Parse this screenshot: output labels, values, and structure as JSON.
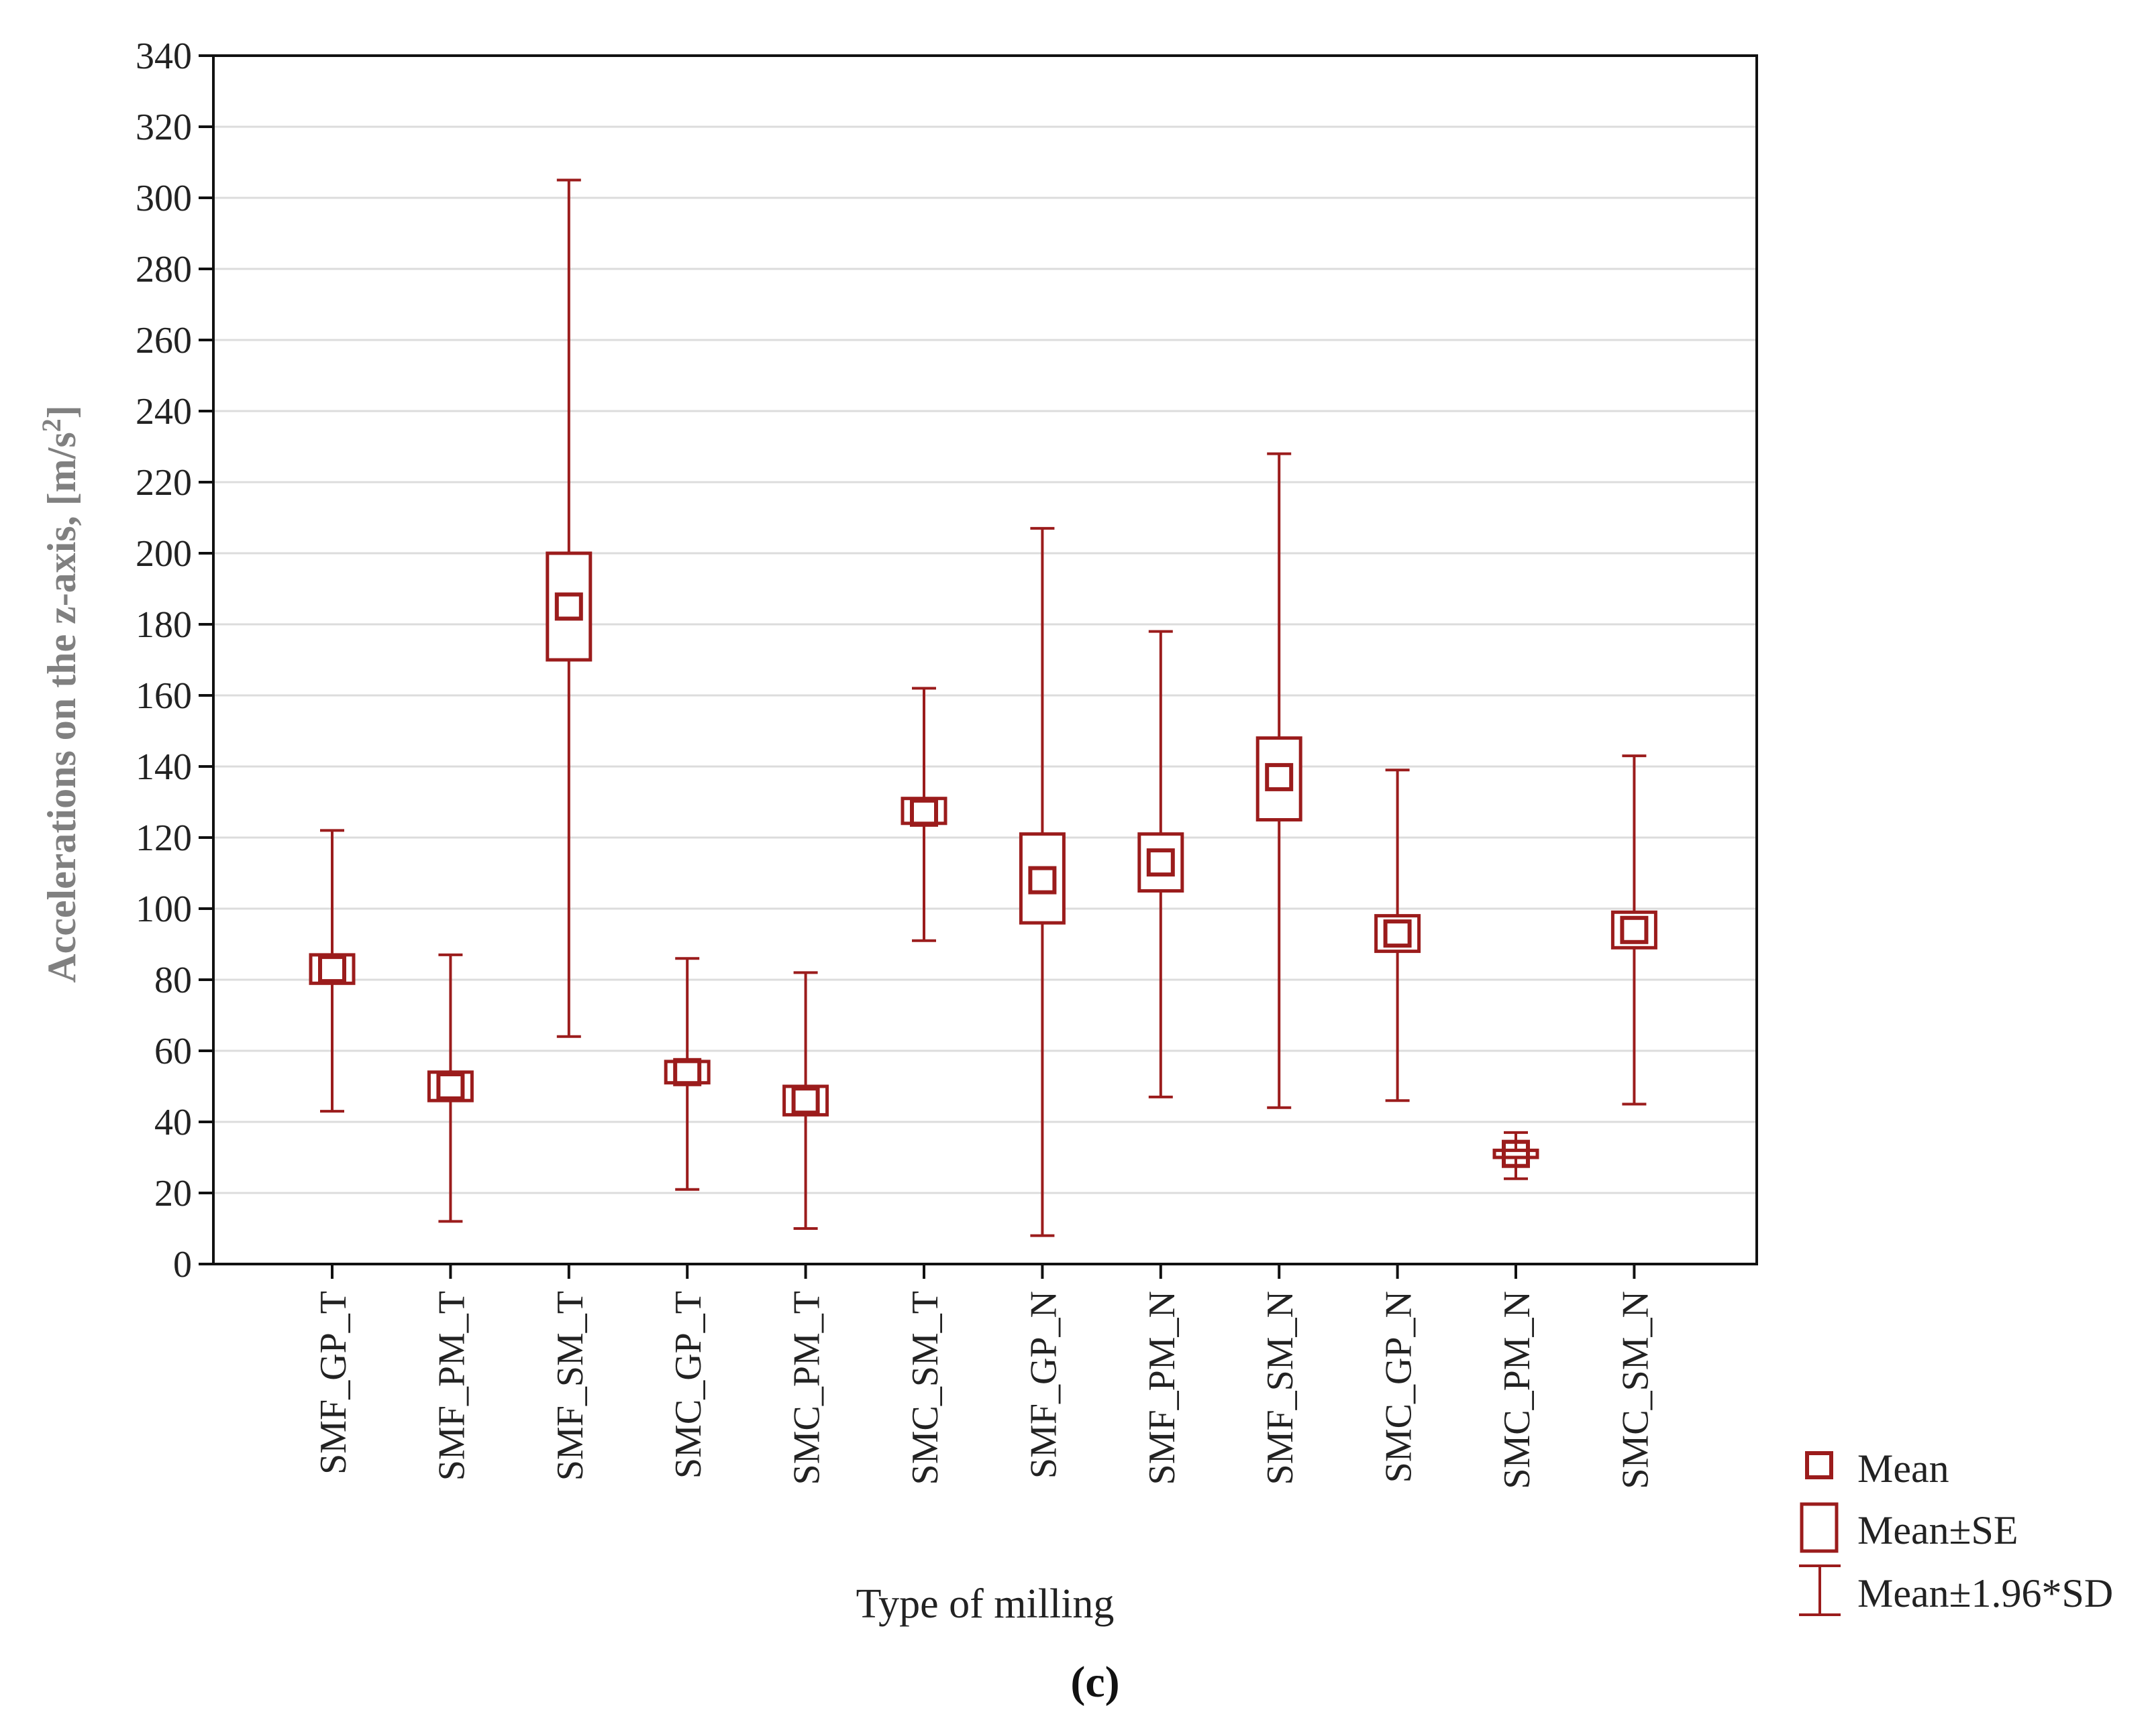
{
  "chart_data": {
    "type": "box-whisker",
    "title": "",
    "xlabel": "Type of milling",
    "ylabel": "Accelerations on the z-axis, [m/s",
    "ylabel_sup": "2",
    "ylabel_end": "]",
    "caption_open": "(",
    "caption_letter": "c",
    "caption_close": ")",
    "ylim": [
      0,
      340
    ],
    "yticks": [
      0,
      20,
      40,
      60,
      80,
      100,
      120,
      140,
      160,
      180,
      200,
      220,
      240,
      260,
      280,
      300,
      320,
      340
    ],
    "grid": true,
    "categories": [
      "SMF_GP_T",
      "SMF_PM_T",
      "SMF_SM_T",
      "SMC_GP_T",
      "SMC_PM_T",
      "SMC_SM_T",
      "SMF_GP_N",
      "SMF_PM_N",
      "SMF_SM_N",
      "SMC_GP_N",
      "SMC_PM_N",
      "SMC_SM_N"
    ],
    "series": [
      {
        "name": "Mean",
        "values": [
          83,
          50,
          185,
          54,
          46,
          127,
          108,
          113,
          137,
          93,
          31,
          94
        ]
      },
      {
        "name": "Mean±SE",
        "low": [
          79,
          46,
          170,
          51,
          42,
          124,
          96,
          105,
          125,
          88,
          30,
          89
        ],
        "high": [
          87,
          54,
          200,
          57,
          50,
          131,
          121,
          121,
          148,
          98,
          32,
          99
        ]
      },
      {
        "name": "Mean±1.96*SD",
        "low": [
          43,
          12,
          64,
          21,
          10,
          91,
          8,
          47,
          44,
          46,
          24,
          45
        ],
        "high": [
          122,
          87,
          305,
          86,
          82,
          162,
          207,
          178,
          228,
          139,
          37,
          143
        ]
      }
    ],
    "legend": {
      "position": "bottom-right",
      "entries": [
        "Mean",
        "Mean±SE",
        "Mean±1.96*SD"
      ]
    },
    "colors": {
      "series": "#9b1c1c",
      "frame": "#111111",
      "grid": "#dcdcdc"
    }
  }
}
